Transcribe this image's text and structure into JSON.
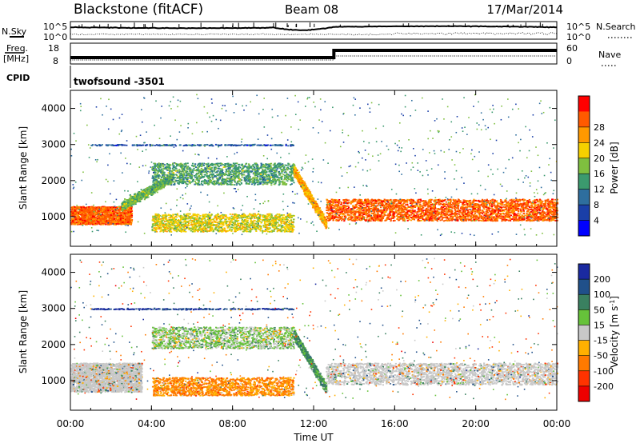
{
  "header": {
    "station": "Blackstone (fitACF)",
    "beam": "Beam 08",
    "date": "17/Mar/2014"
  },
  "top_panels": {
    "nsky_label": "N.Sky",
    "nsearch_label": "N.Search",
    "nsky_ticks": [
      "10^5",
      "10^0"
    ],
    "nsearch_ticks": [
      "10^5",
      "10^0"
    ],
    "freq_label_1": "Freq.",
    "freq_label_2": "[MHz]",
    "freq_ticks": [
      "18",
      "8"
    ],
    "nave_label": "Nave",
    "nave_ticks": [
      "60",
      "0"
    ],
    "cpid_label": "CPID",
    "cpid_value": "twofsound -3501"
  },
  "colors": {
    "power_scale": [
      "#0000ff",
      "#1a3fa8",
      "#2e6e9e",
      "#3b9a6e",
      "#7fbf3f",
      "#f5d000",
      "#ff9900",
      "#ff5a00",
      "#ff0000"
    ],
    "velocity_scale": [
      "#1a2aa0",
      "#20508a",
      "#3a8060",
      "#66c23a",
      "#c8c8c8",
      "#ffb000",
      "#ff7a00",
      "#ff3300",
      "#ee0000"
    ],
    "ground_scatter": "#bdbdbd"
  },
  "chart_data": [
    {
      "type": "heatmap",
      "title": "Power",
      "xlabel": "Time UT",
      "ylabel": "Slant Range [km]",
      "x_ticks": [
        "00:00",
        "04:00",
        "08:00",
        "12:00",
        "16:00",
        "20:00",
        "00:00"
      ],
      "x_range_hours": [
        0,
        24
      ],
      "y_ticks": [
        1000,
        2000,
        3000,
        4000
      ],
      "y_range_km": [
        180,
        4500
      ],
      "colorbar": {
        "label": "Power [dB]",
        "ticks": [
          4,
          8,
          12,
          16,
          20,
          24,
          28
        ],
        "range": [
          0,
          30
        ]
      },
      "features": [
        {
          "name": "main band",
          "hours": [
            0,
            3.0
          ],
          "range_km": [
            800,
            1300
          ],
          "dominant_power_db": 26
        },
        {
          "name": "rising band",
          "hours": [
            2.5,
            5.0
          ],
          "range_km": [
            1300,
            2100
          ],
          "dominant_power_db": 14
        },
        {
          "name": "upper band",
          "hours": [
            4.0,
            11.0
          ],
          "range_km": [
            1900,
            2500
          ],
          "dominant_power_db": 12
        },
        {
          "name": "lower band",
          "hours": [
            4.0,
            11.0
          ],
          "range_km": [
            600,
            1100
          ],
          "dominant_power_db": 18
        },
        {
          "name": "fixed echo line",
          "hours": [
            1.0,
            11.0
          ],
          "range_km": [
            3000,
            3000
          ],
          "dominant_power_db": 6
        },
        {
          "name": "dusk descent",
          "hours": [
            11.0,
            12.6
          ],
          "range_km": [
            800,
            2300
          ],
          "dominant_power_db": 22
        },
        {
          "name": "night band",
          "hours": [
            12.6,
            24.0
          ],
          "range_km": [
            900,
            1500
          ],
          "dominant_power_db": 26
        }
      ]
    },
    {
      "type": "heatmap",
      "xlabel": "Time UT",
      "ylabel": "Slant Range [km]",
      "x_ticks": [
        "00:00",
        "04:00",
        "08:00",
        "12:00",
        "16:00",
        "20:00",
        "00:00"
      ],
      "x_range_hours": [
        0,
        24
      ],
      "y_ticks": [
        1000,
        2000,
        3000,
        4000
      ],
      "y_range_km": [
        180,
        4500
      ],
      "colorbar": {
        "label": "Velocity [m s^-1]",
        "ticks": [
          200,
          100,
          50,
          15,
          -15,
          -50,
          -100,
          -200
        ]
      },
      "features": [
        {
          "name": "ground scatter early",
          "hours": [
            0,
            3.5
          ],
          "range_km": [
            700,
            1500
          ],
          "dominant_velocity": 0
        },
        {
          "name": "upper band",
          "hours": [
            4.0,
            11.0
          ],
          "range_km": [
            1900,
            2500
          ],
          "dominant_velocity": 20
        },
        {
          "name": "lower band",
          "hours": [
            4.0,
            11.0
          ],
          "range_km": [
            600,
            1100
          ],
          "dominant_velocity": -60
        },
        {
          "name": "fixed echo line",
          "hours": [
            1.0,
            11.0
          ],
          "range_km": [
            3000,
            3000
          ],
          "dominant_velocity": 200
        },
        {
          "name": "dusk descent",
          "hours": [
            11.0,
            12.6
          ],
          "range_km": [
            800,
            2300
          ],
          "dominant_velocity": 60
        },
        {
          "name": "night ground scatter",
          "hours": [
            12.6,
            24.0
          ],
          "range_km": [
            900,
            1500
          ],
          "dominant_velocity": 0
        }
      ]
    }
  ]
}
